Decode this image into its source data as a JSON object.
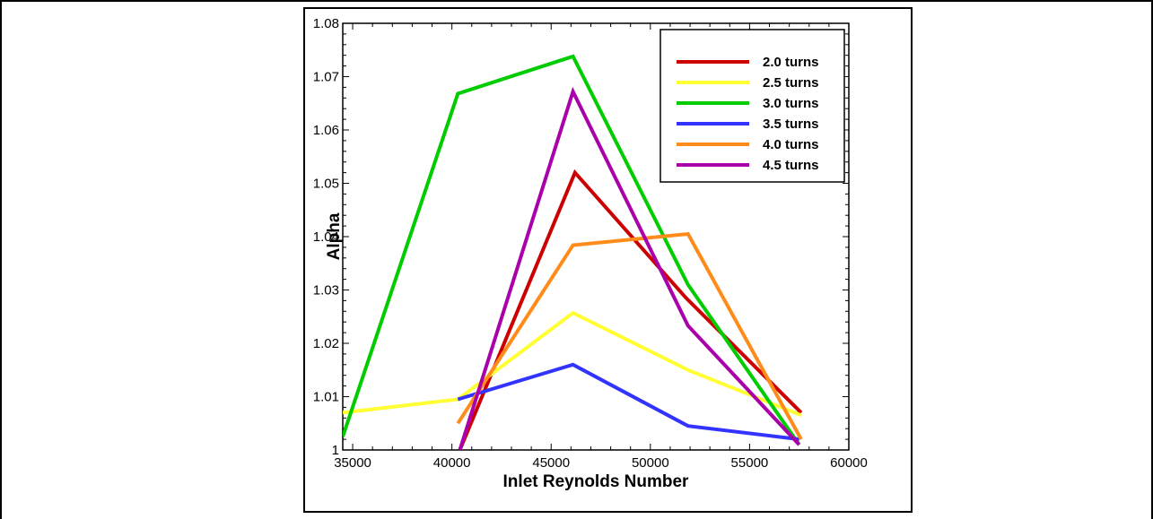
{
  "chart_data": {
    "type": "line",
    "title": "",
    "xlabel": "Inlet Reynolds Number",
    "ylabel": "Alpha",
    "xlim": [
      34500,
      60000
    ],
    "ylim": [
      1.0,
      1.08
    ],
    "xticks": [
      35000,
      40000,
      45000,
      50000,
      55000,
      60000
    ],
    "yticks": [
      1.0,
      1.01,
      1.02,
      1.03,
      1.04,
      1.05,
      1.06,
      1.07,
      1.08
    ],
    "ytick_labels": [
      "1",
      "1.01",
      "1.02",
      "1.03",
      "1.04",
      "1.05",
      "1.06",
      "1.07",
      "1.08"
    ],
    "grid": false,
    "legend_position": "top-right",
    "series": [
      {
        "name": "2.0 turns",
        "color": "#cc0000",
        "x": [
          40400,
          46200,
          51800,
          57600
        ],
        "y": [
          1.0,
          1.052,
          1.0285,
          1.007
        ]
      },
      {
        "name": "2.5 turns",
        "color": "#ffff33",
        "x": [
          34500,
          40300,
          46100,
          51900,
          57600
        ],
        "y": [
          1.007,
          1.0095,
          1.0257,
          1.015,
          1.0065
        ]
      },
      {
        "name": "3.0 turns",
        "color": "#00cc00",
        "x": [
          34500,
          40300,
          46100,
          51900,
          57500
        ],
        "y": [
          1.0025,
          1.0668,
          1.0738,
          1.031,
          1.001
        ]
      },
      {
        "name": "3.5 turns",
        "color": "#3333ff",
        "x": [
          40300,
          46100,
          51900,
          57500
        ],
        "y": [
          1.0095,
          1.016,
          1.0045,
          1.002
        ]
      },
      {
        "name": "4.0 turns",
        "color": "#ff8c1a",
        "x": [
          40300,
          46100,
          51900,
          57600
        ],
        "y": [
          1.005,
          1.0384,
          1.0405,
          1.002
        ]
      },
      {
        "name": "4.5 turns",
        "color": "#aa00aa",
        "x": [
          40400,
          46100,
          51900,
          57500
        ],
        "y": [
          1.0,
          1.0672,
          1.0233,
          1.001
        ]
      }
    ]
  }
}
